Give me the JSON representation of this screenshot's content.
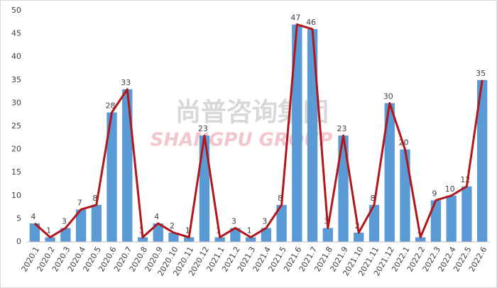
{
  "chart_data": {
    "type": "bar-line",
    "watermark": [
      "尚普咨询集团",
      "SHANGPU GROUP"
    ],
    "categories": [
      "2020.1",
      "2020.2",
      "2020.3",
      "2020.4",
      "2020.5",
      "2020.6",
      "2020.7",
      "2020.8",
      "2020.9",
      "2020.10",
      "2020.11",
      "2020.12",
      "2021.1",
      "2021.2",
      "2021.3",
      "2021.4",
      "2021.5",
      "2021.6",
      "2021.7",
      "2021.8",
      "2021.9",
      "2021.10",
      "2021.11",
      "2021.12",
      "2022.1",
      "2022.2",
      "2022.3",
      "2022.4",
      "2022.5",
      "2022.6"
    ],
    "series": [
      {
        "type": "bar",
        "color": "#5b9bd5",
        "values": [
          4,
          1,
          3,
          7,
          8,
          28,
          33,
          1,
          4,
          2,
          1,
          23,
          1,
          3,
          1,
          3,
          8,
          47,
          46,
          3,
          23,
          2,
          8,
          30,
          20,
          1,
          9,
          10,
          12,
          35
        ]
      },
      {
        "type": "line",
        "color": "#b0161c",
        "values": [
          4,
          1,
          3,
          7,
          8,
          28,
          33,
          1,
          4,
          2,
          1,
          23,
          1,
          3,
          1,
          3,
          8,
          47,
          46,
          3,
          23,
          2,
          8,
          30,
          20,
          1,
          9,
          10,
          12,
          35
        ]
      }
    ],
    "ylim": [
      0,
      50
    ],
    "yticks": [
      0,
      5,
      10,
      15,
      20,
      25,
      30,
      35,
      40,
      45,
      50
    ],
    "grid": false
  }
}
